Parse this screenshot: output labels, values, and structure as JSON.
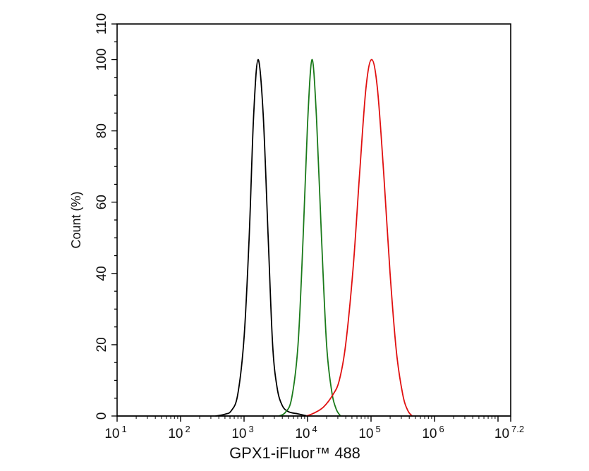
{
  "chart_data": {
    "type": "line",
    "title": "",
    "xlabel": "GPX1-iFluor™ 488",
    "ylabel": "Count  (%)",
    "x_scale": "log",
    "xlim_log10": [
      1,
      7.2
    ],
    "ylim": [
      0,
      110
    ],
    "x_tick_labels": [
      {
        "base": "10",
        "exp": "1",
        "log": 1
      },
      {
        "base": "10",
        "exp": "2",
        "log": 2
      },
      {
        "base": "10",
        "exp": "3",
        "log": 3
      },
      {
        "base": "10",
        "exp": "4",
        "log": 4
      },
      {
        "base": "10",
        "exp": "5",
        "log": 5
      },
      {
        "base": "10",
        "exp": "6",
        "log": 6
      },
      {
        "base": "10",
        "exp": "7.2",
        "log": 7.2
      }
    ],
    "y_ticks": [
      0,
      20,
      40,
      60,
      80,
      100,
      110
    ],
    "y_minor_step": 5,
    "grid": false,
    "legend": null,
    "series": [
      {
        "name": "black-control",
        "color": "#000000",
        "peak_log10": 3.22,
        "peak_value": 100,
        "points_log10": [
          [
            2.55,
            0
          ],
          [
            2.7,
            0.5
          ],
          [
            2.8,
            1.5
          ],
          [
            2.9,
            6
          ],
          [
            3.0,
            22
          ],
          [
            3.08,
            50
          ],
          [
            3.15,
            84
          ],
          [
            3.22,
            100
          ],
          [
            3.3,
            85
          ],
          [
            3.38,
            50
          ],
          [
            3.45,
            20
          ],
          [
            3.52,
            8
          ],
          [
            3.6,
            3
          ],
          [
            3.7,
            1.2
          ],
          [
            3.85,
            0.6
          ],
          [
            4.0,
            0
          ]
        ]
      },
      {
        "name": "green",
        "color": "#1a7a1a",
        "peak_log10": 4.07,
        "peak_value": 100,
        "points_log10": [
          [
            3.55,
            0
          ],
          [
            3.65,
            1
          ],
          [
            3.75,
            5
          ],
          [
            3.85,
            20
          ],
          [
            3.93,
            50
          ],
          [
            4.0,
            82
          ],
          [
            4.07,
            100
          ],
          [
            4.14,
            84
          ],
          [
            4.22,
            50
          ],
          [
            4.3,
            20
          ],
          [
            4.38,
            7
          ],
          [
            4.45,
            2
          ],
          [
            4.52,
            0
          ]
        ]
      },
      {
        "name": "red",
        "color": "#e01010",
        "peak_log10": 5.01,
        "peak_value": 100,
        "points_log10": [
          [
            3.98,
            0
          ],
          [
            4.1,
            0.8
          ],
          [
            4.25,
            2.5
          ],
          [
            4.4,
            6
          ],
          [
            4.5,
            10
          ],
          [
            4.6,
            20
          ],
          [
            4.72,
            42
          ],
          [
            4.82,
            68
          ],
          [
            4.92,
            92
          ],
          [
            5.01,
            100
          ],
          [
            5.1,
            92
          ],
          [
            5.2,
            68
          ],
          [
            5.3,
            40
          ],
          [
            5.4,
            18
          ],
          [
            5.5,
            6
          ],
          [
            5.58,
            1.5
          ],
          [
            5.65,
            0
          ]
        ]
      }
    ]
  }
}
